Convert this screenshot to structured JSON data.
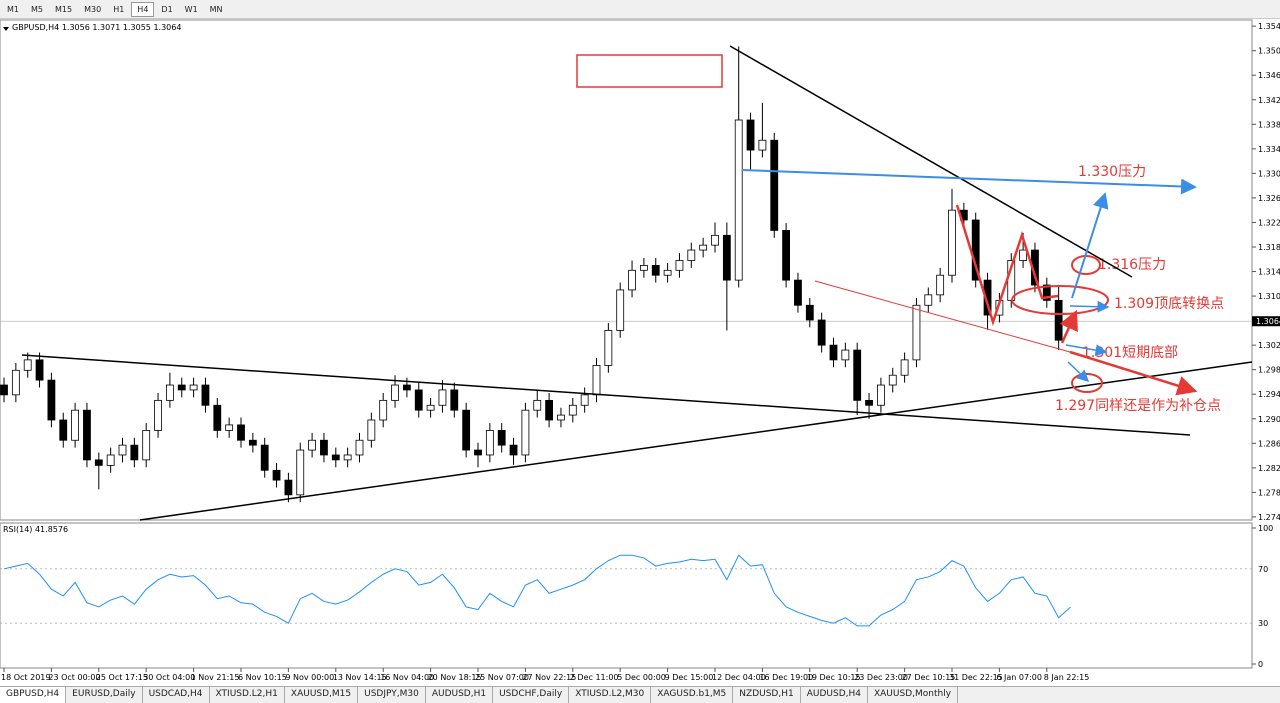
{
  "toolbar": {
    "timeframes": [
      "M1",
      "M5",
      "M15",
      "M30",
      "H1",
      "H4",
      "D1",
      "W1",
      "MN"
    ]
  },
  "tabs": [
    "GBPUSD,H4",
    "EURUSD,Daily",
    "USDCAD,H4",
    "XTIUSD.L2,H1",
    "XAUUSD,M15",
    "USDJPY,M30",
    "AUDUSD,H1",
    "USDCHF,Daily",
    "XTIUSD.L2,M30",
    "XAGUSD.b1,M5",
    "NZDUSD,H1",
    "AUDUSD,H4",
    "XAUUSD,Monthly"
  ],
  "chart_data": [
    {
      "type": "candlestick",
      "title": "GBPUSD,H4",
      "up_color": "#ffffff",
      "down_color": "#000000",
      "edge_color": "#000000",
      "categories": [
        "18 Oct 2019",
        null,
        null,
        null,
        "23 Oct 00:00",
        null,
        null,
        null,
        "25 Oct 17:15",
        null,
        null,
        null,
        "30 Oct 04:00",
        null,
        null,
        null,
        "1 Nov 21:15",
        null,
        null,
        null,
        "6 Nov 10:15",
        null,
        null,
        null,
        "9 Nov 00:00",
        null,
        null,
        null,
        "13 Nov 14:15",
        null,
        null,
        null,
        "16 Nov 04:00",
        null,
        null,
        null,
        "20 Nov 18:15",
        null,
        null,
        null,
        "25 Nov 07:00",
        null,
        null,
        null,
        "27 Nov 22:15",
        null,
        null,
        null,
        "2 Dec 11:00",
        null,
        null,
        null,
        "5 Dec 00:00",
        null,
        null,
        null,
        "9 Dec 15:00",
        null,
        null,
        null,
        "12 Dec 04:00",
        null,
        null,
        null,
        "16 Dec 19:00",
        null,
        null,
        null,
        "19 Dec 10:15",
        null,
        null,
        null,
        "23 Dec 23:00",
        null,
        null,
        null,
        "27 Dec 10:15",
        null,
        null,
        null,
        "31 Dec 22:15",
        null,
        null,
        null,
        "6 Jan 07:00",
        null,
        null,
        null,
        "8 Jan 22:15",
        null,
        null
      ],
      "open": [
        1.296,
        1.2944,
        1.2984,
        1.3001,
        1.2968,
        1.2903,
        1.287,
        1.2919,
        1.2838,
        1.2829,
        1.2846,
        1.2862,
        1.2838,
        1.2886,
        1.2935,
        1.296,
        1.2952,
        1.296,
        1.2927,
        1.2886,
        1.2895,
        1.287,
        1.2862,
        1.2821,
        1.2805,
        1.2781,
        1.2854,
        1.287,
        1.2846,
        1.2838,
        1.2846,
        1.287,
        1.2903,
        1.2935,
        1.296,
        1.2952,
        1.2919,
        1.2927,
        1.2952,
        1.2919,
        1.2854,
        1.2846,
        1.2886,
        1.2862,
        1.2846,
        1.2919,
        1.2935,
        1.2903,
        1.2911,
        1.2927,
        1.2944,
        1.2992,
        1.3049,
        1.3115,
        1.3147,
        1.3155,
        1.3139,
        1.3147,
        1.3163,
        1.318,
        1.3188,
        1.3204,
        1.3131,
        1.3392,
        1.3343,
        1.3359,
        1.3212,
        1.3131,
        1.309,
        1.3066,
        1.3025,
        1.3001,
        1.3017,
        1.2935,
        1.2927,
        1.296,
        1.2976,
        1.3001,
        1.309,
        1.3107,
        1.3139,
        1.3245,
        1.3229,
        1.3131,
        1.3074,
        1.3098,
        1.3163,
        1.318,
        1.3123,
        1.3098,
        1.3056
      ],
      "high": [
        1.2972,
        1.2996,
        1.3013,
        1.3013,
        1.298,
        1.2915,
        1.2931,
        1.2931,
        1.285,
        1.2858,
        1.2874,
        1.2874,
        1.2898,
        1.2947,
        1.298,
        1.2972,
        1.2972,
        1.2972,
        1.2939,
        1.2907,
        1.2907,
        1.2882,
        1.2874,
        1.2833,
        1.2817,
        1.2866,
        1.2882,
        1.2882,
        1.2858,
        1.2858,
        1.2882,
        1.2915,
        1.2947,
        1.2976,
        1.2972,
        1.2964,
        1.2939,
        1.2968,
        1.2964,
        1.2931,
        1.2866,
        1.2898,
        1.2898,
        1.2874,
        1.2931,
        1.2952,
        1.2947,
        1.2923,
        1.2939,
        1.2956,
        1.3004,
        1.3061,
        1.3127,
        1.3163,
        1.3167,
        1.3167,
        1.3159,
        1.3175,
        1.3192,
        1.32,
        1.3225,
        1.3225,
        1.3512,
        1.3404,
        1.342,
        1.3371,
        1.3224,
        1.3143,
        1.3102,
        1.3078,
        1.3037,
        1.3029,
        1.3029,
        1.2947,
        1.2972,
        1.2988,
        1.3013,
        1.3102,
        1.3119,
        1.3151,
        1.328,
        1.3257,
        1.3241,
        1.3143,
        1.311,
        1.3175,
        1.3208,
        1.3192,
        1.3135,
        1.312,
        1.3071
      ],
      "low": [
        1.2932,
        1.2932,
        1.2972,
        1.2956,
        1.2891,
        1.2858,
        1.2858,
        1.2826,
        1.279,
        1.2817,
        1.2834,
        1.2826,
        1.2826,
        1.2874,
        1.2923,
        1.294,
        1.294,
        1.2915,
        1.2874,
        1.2874,
        1.2858,
        1.285,
        1.2809,
        1.2793,
        1.2769,
        1.2769,
        1.2842,
        1.2834,
        1.2826,
        1.2826,
        1.2834,
        1.2858,
        1.2891,
        1.2923,
        1.294,
        1.2907,
        1.2907,
        1.2915,
        1.2907,
        1.2842,
        1.2826,
        1.2834,
        1.285,
        1.283,
        1.2834,
        1.2907,
        1.2891,
        1.2891,
        1.2899,
        1.2915,
        1.2932,
        1.298,
        1.3037,
        1.3103,
        1.3135,
        1.3127,
        1.3127,
        1.3135,
        1.3151,
        1.3168,
        1.3176,
        1.3049,
        1.3119,
        1.331,
        1.3331,
        1.32,
        1.3119,
        1.3078,
        1.3054,
        1.3013,
        1.2989,
        1.2989,
        1.2911,
        1.2905,
        1.2915,
        1.2948,
        1.2964,
        1.2989,
        1.3078,
        1.3095,
        1.3127,
        1.3217,
        1.3119,
        1.305,
        1.3062,
        1.3086,
        1.3151,
        1.3111,
        1.3086,
        1.3017,
        1.3055
      ],
      "close": [
        1.2944,
        1.2984,
        1.3001,
        1.2968,
        1.2903,
        1.287,
        1.2919,
        1.2838,
        1.2829,
        1.2846,
        1.2862,
        1.2838,
        1.2886,
        1.2935,
        1.296,
        1.2952,
        1.296,
        1.2927,
        1.2886,
        1.2895,
        1.287,
        1.2862,
        1.2821,
        1.2805,
        1.2781,
        1.2854,
        1.287,
        1.2846,
        1.2838,
        1.2846,
        1.287,
        1.2903,
        1.2935,
        1.296,
        1.2952,
        1.2919,
        1.2927,
        1.2952,
        1.2919,
        1.2854,
        1.2846,
        1.2886,
        1.2862,
        1.2846,
        1.2919,
        1.2935,
        1.2903,
        1.2911,
        1.2927,
        1.2944,
        1.2992,
        1.3049,
        1.3115,
        1.3147,
        1.3155,
        1.3139,
        1.3147,
        1.3163,
        1.318,
        1.3188,
        1.3204,
        1.3131,
        1.3392,
        1.3343,
        1.3359,
        1.3212,
        1.3131,
        1.309,
        1.3066,
        1.3025,
        1.3001,
        1.3017,
        1.2935,
        1.2927,
        1.296,
        1.2976,
        1.3001,
        1.309,
        1.3107,
        1.3139,
        1.3245,
        1.3229,
        1.3131,
        1.3074,
        1.3098,
        1.3163,
        1.318,
        1.3123,
        1.3098,
        1.3033,
        1.3064
      ],
      "ylim": [
        1.274,
        1.3555
      ],
      "yticks": [
        1.2745,
        1.2785,
        1.2825,
        1.2865,
        1.2905,
        1.2945,
        1.2985,
        1.3025,
        1.3065,
        1.3105,
        1.3145,
        1.3185,
        1.3225,
        1.3265,
        1.3305,
        1.3345,
        1.3385,
        1.3425,
        1.3465,
        1.3505,
        1.3545
      ],
      "annotations": [
        "1.330压力",
        "1.316压力",
        "1.309顶底转换点",
        "1.301短期底部",
        "1.297同样还是作为补仓点"
      ],
      "annotation_color": "#e53935"
    },
    {
      "type": "line",
      "title": "RSI(14)",
      "color": "#1e90ff",
      "ylim": [
        0,
        100
      ],
      "yticks": [
        0,
        30,
        70,
        100
      ],
      "values": [
        70,
        72,
        74,
        66,
        55,
        50,
        60,
        45,
        42,
        47,
        50,
        44,
        55,
        62,
        66,
        64,
        65,
        58,
        48,
        50,
        45,
        44,
        38,
        35,
        30,
        48,
        52,
        46,
        44,
        47,
        53,
        60,
        66,
        70,
        68,
        58,
        60,
        66,
        56,
        42,
        40,
        52,
        46,
        42,
        58,
        62,
        52,
        55,
        58,
        62,
        70,
        76,
        80,
        80,
        78,
        72,
        74,
        75,
        77,
        76,
        77,
        62,
        80,
        72,
        73,
        52,
        42,
        38,
        35,
        32,
        30,
        34,
        28,
        28,
        36,
        40,
        46,
        62,
        64,
        68,
        76,
        72,
        56,
        46,
        52,
        62,
        64,
        52,
        50,
        34,
        41.8576
      ]
    }
  ]
}
